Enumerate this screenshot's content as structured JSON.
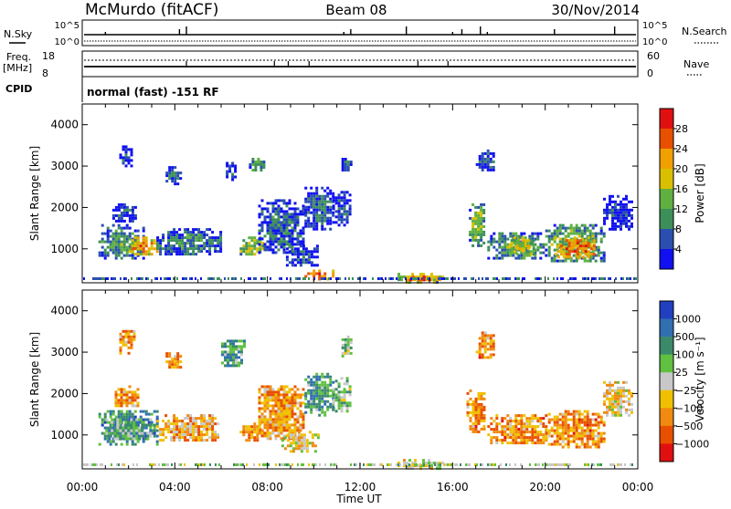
{
  "header": {
    "station": "McMurdo (fitACF)",
    "beam": "Beam 08",
    "date": "30/Nov/2014"
  },
  "noise_panel": {
    "left_label": "N.Sky",
    "right_label": "N.Search",
    "tick_top": "10^5",
    "tick_bottom": "10^0",
    "right_tick_top": "10^5",
    "right_tick_bottom": "10^0"
  },
  "freq_panel": {
    "left_label_1": "Freq.",
    "left_label_2": "[MHz]",
    "tick_top": "18",
    "tick_bottom": "8",
    "right_label": "Nave",
    "right_tick_top": "60",
    "right_tick_bottom": "0"
  },
  "cpid_panel": {
    "left_label": "CPID",
    "mode_text": "normal (fast) -151 RF"
  },
  "colors": {
    "power_scale": [
      "#1010f0",
      "#2a4fb0",
      "#3d8f5a",
      "#5fb040",
      "#d8c000",
      "#f0a000",
      "#e85000",
      "#e01010"
    ],
    "velocity_scale": [
      "#2040c0",
      "#3070b0",
      "#3a8a6a",
      "#60c040",
      "#c8c8c8",
      "#f0c000",
      "#f08a10",
      "#e85000",
      "#e01010"
    ]
  },
  "chart_data": [
    {
      "type": "heatmap",
      "name": "power",
      "xlabel": "",
      "ylabel": "Slant Range [km]",
      "xlim": [
        "00:00",
        "24:00"
      ],
      "ylim": [
        180,
        4500
      ],
      "y_ticks": [
        "1000",
        "2000",
        "3000",
        "4000"
      ],
      "colorbar": {
        "label": "Power [dB]",
        "ticks": [
          "4",
          "8",
          "12",
          "16",
          "20",
          "24",
          "28"
        ],
        "range": [
          0,
          30
        ]
      },
      "patches": [
        {
          "t0": 0.7,
          "t1": 2.6,
          "r0": 800,
          "r1": 1600,
          "level": 0.35
        },
        {
          "t0": 2.0,
          "t1": 3.2,
          "r0": 900,
          "r1": 1300,
          "level": 0.75
        },
        {
          "t0": 1.3,
          "t1": 2.3,
          "r0": 1700,
          "r1": 2100,
          "level": 0.2
        },
        {
          "t0": 1.6,
          "t1": 2.1,
          "r0": 3000,
          "r1": 3500,
          "level": 0.15
        },
        {
          "t0": 3.2,
          "t1": 6.0,
          "r0": 850,
          "r1": 1500,
          "level": 0.3
        },
        {
          "t0": 3.6,
          "t1": 4.2,
          "r0": 2600,
          "r1": 3000,
          "level": 0.25
        },
        {
          "t0": 6.8,
          "t1": 7.8,
          "r0": 850,
          "r1": 1300,
          "level": 0.55
        },
        {
          "t0": 7.2,
          "t1": 7.8,
          "r0": 2900,
          "r1": 3200,
          "level": 0.45
        },
        {
          "t0": 6.2,
          "t1": 6.6,
          "r0": 2700,
          "r1": 3100,
          "level": 0.2
        },
        {
          "t0": 7.6,
          "t1": 9.5,
          "r0": 900,
          "r1": 2200,
          "level": 0.25
        },
        {
          "t0": 9.6,
          "t1": 10.8,
          "r0": 1500,
          "r1": 2500,
          "level": 0.25
        },
        {
          "t0": 8.8,
          "t1": 10.2,
          "r0": 600,
          "r1": 1100,
          "level": 0.2
        },
        {
          "t0": 10.8,
          "t1": 11.6,
          "r0": 1600,
          "r1": 2400,
          "level": 0.15
        },
        {
          "t0": 11.2,
          "t1": 11.6,
          "r0": 2900,
          "r1": 3200,
          "level": 0.2
        },
        {
          "t0": 9.6,
          "t1": 10.8,
          "r0": 250,
          "r1": 500,
          "level": 0.85
        },
        {
          "t0": 13.5,
          "t1": 15.6,
          "r0": 220,
          "r1": 420,
          "level": 0.6
        },
        {
          "t0": 14.0,
          "t1": 15.0,
          "r0": 250,
          "r1": 350,
          "level": 0.9
        },
        {
          "t0": 16.7,
          "t1": 17.4,
          "r0": 1100,
          "r1": 2100,
          "level": 0.45
        },
        {
          "t0": 17.0,
          "t1": 17.8,
          "r0": 2900,
          "r1": 3400,
          "level": 0.2
        },
        {
          "t0": 17.5,
          "t1": 20.0,
          "r0": 800,
          "r1": 1400,
          "level": 0.4
        },
        {
          "t0": 18.5,
          "t1": 19.5,
          "r0": 900,
          "r1": 1300,
          "level": 0.6
        },
        {
          "t0": 20.0,
          "t1": 22.5,
          "r0": 700,
          "r1": 1600,
          "level": 0.45
        },
        {
          "t0": 20.4,
          "t1": 22.1,
          "r0": 800,
          "r1": 1300,
          "level": 0.8
        },
        {
          "t0": 22.5,
          "t1": 23.8,
          "r0": 1500,
          "r1": 2300,
          "level": 0.15
        }
      ]
    },
    {
      "type": "heatmap",
      "name": "velocity",
      "xlabel": "Time UT",
      "ylabel": "Slant Range [km]",
      "xlim": [
        "00:00",
        "24:00"
      ],
      "x_ticks": [
        "00:00",
        "04:00",
        "08:00",
        "12:00",
        "16:00",
        "20:00",
        "00:00"
      ],
      "ylim": [
        180,
        4500
      ],
      "y_ticks": [
        "1000",
        "2000",
        "3000",
        "4000"
      ],
      "colorbar": {
        "label": "Velocity [m s⁻¹]",
        "ticks": [
          "1000",
          "500",
          "100",
          "25",
          "−25",
          "−100",
          "−500",
          "−1000"
        ]
      },
      "patches": [
        {
          "t0": 0.7,
          "t1": 3.2,
          "r0": 800,
          "r1": 1600,
          "level": 0.25
        },
        {
          "t0": 1.0,
          "t1": 3.0,
          "r0": 900,
          "r1": 1400,
          "level": 0.35
        },
        {
          "t0": 1.4,
          "t1": 2.4,
          "r0": 1700,
          "r1": 2200,
          "level": 0.7
        },
        {
          "t0": 1.6,
          "t1": 2.2,
          "r0": 3000,
          "r1": 3600,
          "level": 0.7
        },
        {
          "t0": 3.2,
          "t1": 6.0,
          "r0": 850,
          "r1": 1500,
          "level": 0.65
        },
        {
          "t0": 3.6,
          "t1": 4.2,
          "r0": 2600,
          "r1": 3000,
          "level": 0.7
        },
        {
          "t0": 6.0,
          "t1": 7.0,
          "r0": 2700,
          "r1": 3300,
          "level": 0.3
        },
        {
          "t0": 6.8,
          "t1": 7.8,
          "r0": 850,
          "r1": 1300,
          "level": 0.7
        },
        {
          "t0": 7.6,
          "t1": 9.5,
          "r0": 900,
          "r1": 2200,
          "level": 0.7
        },
        {
          "t0": 9.6,
          "t1": 10.8,
          "r0": 1500,
          "r1": 2500,
          "level": 0.3
        },
        {
          "t0": 10.8,
          "t1": 11.6,
          "r0": 1600,
          "r1": 2400,
          "level": 0.4
        },
        {
          "t0": 11.2,
          "t1": 11.6,
          "r0": 2900,
          "r1": 3400,
          "level": 0.4
        },
        {
          "t0": 8.6,
          "t1": 10.2,
          "r0": 600,
          "r1": 1100,
          "level": 0.55
        },
        {
          "t0": 13.5,
          "t1": 15.6,
          "r0": 220,
          "r1": 420,
          "level": 0.55
        },
        {
          "t0": 16.6,
          "t1": 17.4,
          "r0": 1100,
          "r1": 2100,
          "level": 0.72
        },
        {
          "t0": 17.0,
          "t1": 17.8,
          "r0": 2900,
          "r1": 3500,
          "level": 0.72
        },
        {
          "t0": 17.5,
          "t1": 20.0,
          "r0": 800,
          "r1": 1500,
          "level": 0.72
        },
        {
          "t0": 20.0,
          "t1": 22.6,
          "r0": 700,
          "r1": 1600,
          "level": 0.72
        },
        {
          "t0": 22.5,
          "t1": 23.8,
          "r0": 1500,
          "r1": 2300,
          "level": 0.6
        }
      ]
    }
  ]
}
